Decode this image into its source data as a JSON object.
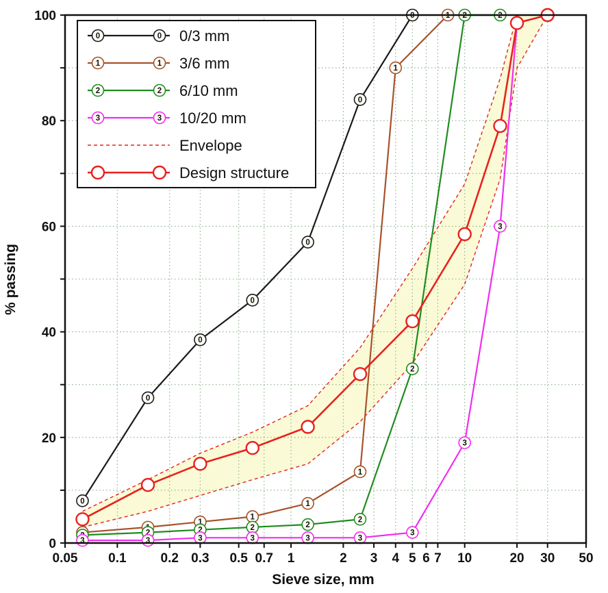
{
  "chart_data": {
    "type": "line",
    "title": "",
    "xlabel": "Sieve size, mm",
    "ylabel": "% passing",
    "x_scale": "log",
    "xlim": [
      0.05,
      50
    ],
    "ylim": [
      0,
      100
    ],
    "x_ticks": [
      0.05,
      0.1,
      0.2,
      0.3,
      0.5,
      0.7,
      1,
      2,
      3,
      4,
      5,
      6,
      7,
      10,
      20,
      30,
      50
    ],
    "x_tick_labels": [
      "0.05",
      "0.1",
      "0.2",
      "0.3",
      "0.5",
      "0.7",
      "1",
      "2",
      "3",
      "4",
      "5",
      "6",
      "7",
      "10",
      "20",
      "30",
      "50"
    ],
    "y_tick_labels": [
      "0",
      "20",
      "40",
      "60",
      "80",
      "100"
    ],
    "y_labeled_step": 20,
    "y_grid_step": 10,
    "grid": true,
    "grid_color": "#85ab85",
    "legend_position": "top-left",
    "series": [
      {
        "name": "0/3 mm",
        "color": "#1a1a1a",
        "marker_digit": "0",
        "points": [
          [
            0.063,
            8
          ],
          [
            0.15,
            27.5
          ],
          [
            0.3,
            38.5
          ],
          [
            0.6,
            46
          ],
          [
            1.25,
            57
          ],
          [
            2.5,
            84
          ],
          [
            5,
            100
          ]
        ]
      },
      {
        "name": "3/6 mm",
        "color": "#a6522b",
        "marker_digit": "1",
        "points": [
          [
            0.063,
            2
          ],
          [
            0.15,
            3
          ],
          [
            0.3,
            4
          ],
          [
            0.6,
            5
          ],
          [
            1.25,
            7.5
          ],
          [
            2.5,
            13.5
          ],
          [
            4,
            90
          ],
          [
            8,
            100
          ]
        ]
      },
      {
        "name": "6/10 mm",
        "color": "#1f8c1f",
        "marker_digit": "2",
        "points": [
          [
            0.063,
            1.5
          ],
          [
            0.15,
            2
          ],
          [
            0.3,
            2.5
          ],
          [
            0.6,
            3
          ],
          [
            1.25,
            3.5
          ],
          [
            2.5,
            4.5
          ],
          [
            5,
            33
          ],
          [
            10,
            100
          ],
          [
            16,
            100
          ]
        ]
      },
      {
        "name": "10/20 mm",
        "color": "#f02df0",
        "marker_digit": "3",
        "points": [
          [
            0.063,
            0.5
          ],
          [
            0.15,
            0.5
          ],
          [
            0.3,
            1
          ],
          [
            0.6,
            1
          ],
          [
            1.25,
            1
          ],
          [
            2.5,
            1
          ],
          [
            5,
            2
          ],
          [
            10,
            19
          ],
          [
            16,
            60
          ],
          [
            20,
            98.5
          ],
          [
            30,
            100
          ]
        ]
      }
    ],
    "envelope": {
      "name": "Envelope",
      "color": "#e8211d",
      "fill": "#fafad2",
      "upper": [
        [
          0.063,
          6
        ],
        [
          0.15,
          12
        ],
        [
          0.3,
          17
        ],
        [
          0.6,
          21
        ],
        [
          1.25,
          26
        ],
        [
          2.5,
          37
        ],
        [
          5,
          52
        ],
        [
          10,
          68
        ],
        [
          16,
          88
        ],
        [
          20,
          100
        ],
        [
          30,
          100
        ]
      ],
      "lower": [
        [
          0.063,
          3
        ],
        [
          0.15,
          6
        ],
        [
          0.3,
          9
        ],
        [
          0.6,
          12
        ],
        [
          1.25,
          15
        ],
        [
          2.5,
          23
        ],
        [
          5,
          34
        ],
        [
          10,
          49
        ],
        [
          16,
          69
        ],
        [
          20,
          90
        ],
        [
          30,
          100
        ]
      ]
    },
    "design": {
      "name": "Design structure",
      "color": "#e8211d",
      "points": [
        [
          0.063,
          4.5
        ],
        [
          0.15,
          11
        ],
        [
          0.3,
          15
        ],
        [
          0.6,
          18
        ],
        [
          1.25,
          22
        ],
        [
          2.5,
          32
        ],
        [
          5,
          42
        ],
        [
          10,
          58.5
        ],
        [
          16,
          79
        ],
        [
          20,
          98.5
        ],
        [
          30,
          100
        ]
      ]
    }
  }
}
